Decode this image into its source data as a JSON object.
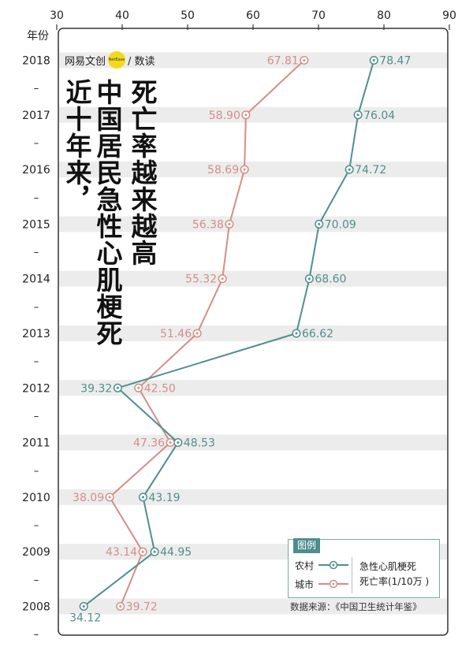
{
  "brand": {
    "name": "网易文创",
    "badge": "NetEase",
    "section": "/ 数读"
  },
  "title_lines": [
    "死亡率越来越高",
    "中国居民急性心肌梗死",
    "近十年来，"
  ],
  "legend": {
    "heading": "图例",
    "rural_label": "农村",
    "urban_label": "城市",
    "desc_line1": "急性心肌梗死",
    "desc_line2": "死亡率(1/10万 )"
  },
  "source": "数据来源：《中国卫生统计年鉴》",
  "colors": {
    "rural": "#4f8f8e",
    "urban": "#d38e8a",
    "band": "#ececec",
    "frame": "#333333"
  },
  "chart_data": {
    "type": "line",
    "orientation": "horizontal-value-axis-top",
    "ylabel": "年份",
    "xlim": [
      30,
      90
    ],
    "xticks": [
      30,
      40,
      50,
      60,
      70,
      80,
      90
    ],
    "categories": [
      "2018",
      "2017",
      "2016",
      "2015",
      "2014",
      "2013",
      "2012",
      "2011",
      "2010",
      "2009",
      "2008"
    ],
    "dash_label": "–",
    "series": [
      {
        "name": "农村",
        "color": "#4f8f8e",
        "values": [
          78.47,
          76.04,
          74.72,
          70.09,
          68.6,
          66.62,
          39.32,
          48.53,
          43.19,
          44.95,
          34.12
        ]
      },
      {
        "name": "城市",
        "color": "#d38e8a",
        "values": [
          67.81,
          58.9,
          58.69,
          56.38,
          55.32,
          51.46,
          42.5,
          47.36,
          38.09,
          43.14,
          39.72
        ]
      }
    ],
    "labels": {
      "农村": [
        "78.47",
        "76.04",
        "74.72",
        "70.09",
        "68.60",
        "66.62",
        "39.32",
        "48.53",
        "43.19",
        "44.95",
        "34.12"
      ],
      "城市": [
        "67.81",
        "58.90",
        "58.69",
        "56.38",
        "55.32",
        "51.46",
        "42.50",
        "47.36",
        "38.09",
        "43.14",
        "39.72"
      ]
    },
    "label_side": {
      "农村": [
        "right",
        "right",
        "right",
        "right",
        "right",
        "right",
        "left",
        "right",
        "right",
        "right",
        "below-left"
      ],
      "城市": [
        "left",
        "left",
        "left",
        "left",
        "left",
        "left",
        "right",
        "left",
        "left",
        "left",
        "right"
      ]
    }
  }
}
